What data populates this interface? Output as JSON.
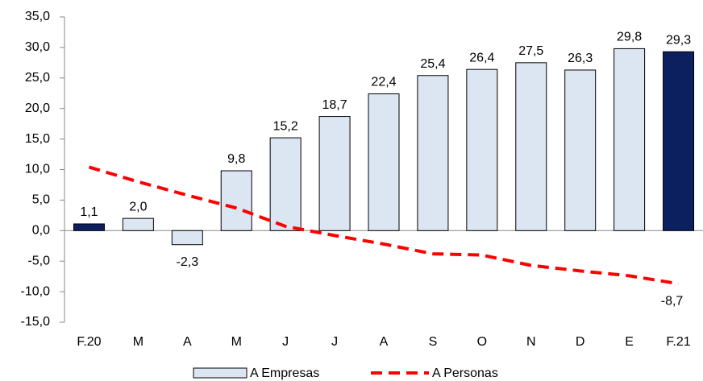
{
  "chart_data": {
    "type": "bar",
    "categories": [
      "F.20",
      "M",
      "A",
      "M",
      "J",
      "J",
      "A",
      "S",
      "O",
      "N",
      "D",
      "E",
      "F.21"
    ],
    "series": [
      {
        "name": "A Empresas",
        "type": "bar",
        "color": "#dce6f2",
        "edge": "#000000",
        "colors": [
          "#0c1f5e",
          "#dce6f2",
          "#dce6f2",
          "#dce6f2",
          "#dce6f2",
          "#dce6f2",
          "#dce6f2",
          "#dce6f2",
          "#dce6f2",
          "#dce6f2",
          "#dce6f2",
          "#dce6f2",
          "#0c1f5e"
        ],
        "values": [
          1.1,
          2.0,
          -2.3,
          9.8,
          15.2,
          18.7,
          22.4,
          25.4,
          26.4,
          27.5,
          26.3,
          29.8,
          29.3
        ],
        "value_labels": [
          "1,1",
          "2,0",
          "-2,3",
          "9,8",
          "15,2",
          "18,7",
          "22,4",
          "25,4",
          "26,4",
          "27,5",
          "26,3",
          "29,8",
          "29,3"
        ]
      },
      {
        "name": "A Personas",
        "type": "line",
        "color": "#ff0000",
        "dashed": true,
        "values": [
          10.4,
          8.0,
          5.8,
          3.7,
          0.7,
          -0.8,
          -2.2,
          -3.8,
          -4.0,
          -5.7,
          -6.6,
          -7.4,
          -8.7
        ],
        "value_labels": [
          null,
          null,
          null,
          null,
          null,
          null,
          null,
          null,
          null,
          null,
          null,
          null,
          "-8,7"
        ]
      }
    ],
    "ylim": [
      -15,
      35
    ],
    "yticks": [
      {
        "value": -15,
        "label": "-15,0"
      },
      {
        "value": -10,
        "label": "-10,0"
      },
      {
        "value": -5,
        "label": "-5,0"
      },
      {
        "value": 0,
        "label": "0,0"
      },
      {
        "value": 5,
        "label": "5,0"
      },
      {
        "value": 10,
        "label": "10,0"
      },
      {
        "value": 15,
        "label": "15,0"
      },
      {
        "value": 20,
        "label": "20,0"
      },
      {
        "value": 25,
        "label": "25,0"
      },
      {
        "value": 30,
        "label": "30,0"
      },
      {
        "value": 35,
        "label": "35,0"
      }
    ],
    "grid": false,
    "legend": "bottom"
  }
}
